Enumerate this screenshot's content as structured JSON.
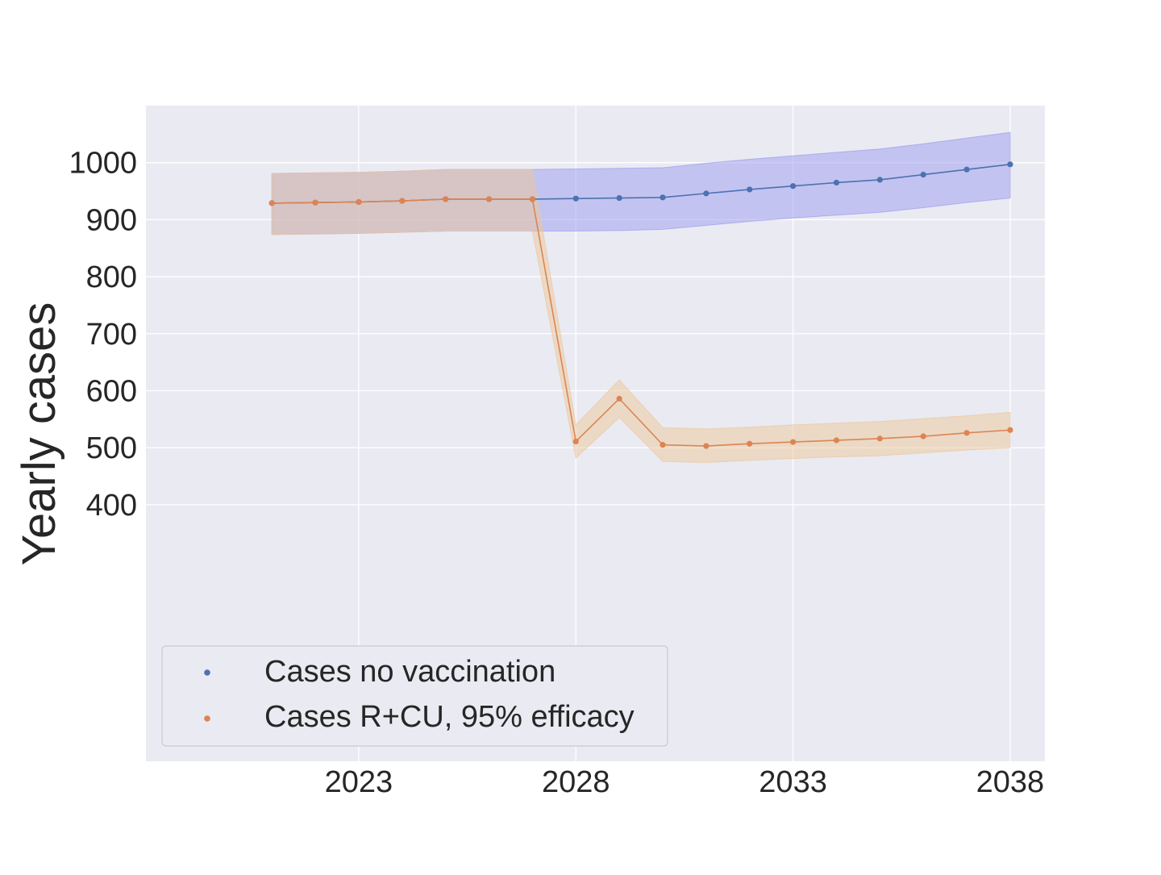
{
  "chart_data": {
    "type": "line",
    "title": "",
    "xlabel": "",
    "ylabel": "Yearly cases",
    "x": [
      2021,
      2022,
      2023,
      2024,
      2025,
      2026,
      2027,
      2028,
      2029,
      2030,
      2031,
      2032,
      2033,
      2034,
      2035,
      2036,
      2037,
      2038
    ],
    "x_ticks": [
      2023,
      2028,
      2033,
      2038
    ],
    "x_tick_labels": [
      "2023",
      "2028",
      "2033",
      "2038"
    ],
    "y_ticks": [
      400,
      500,
      600,
      700,
      800,
      900,
      1000
    ],
    "y_tick_labels": [
      "400",
      "500",
      "600",
      "700",
      "800",
      "900",
      "1000"
    ],
    "xlim": [
      2018.1,
      2038.8
    ],
    "ylim": [
      -50,
      1100
    ],
    "grid": true,
    "legend_position": "lower-left",
    "background_color": "#eaeaf2",
    "series": [
      {
        "name": "Cases no vaccination",
        "color": "#4c72b0",
        "band_color": "#9b9bf0",
        "values": [
          929,
          930,
          931,
          933,
          936,
          936,
          936,
          937,
          938,
          939,
          946,
          953,
          959,
          965,
          970,
          979,
          988,
          997
        ],
        "lower": [
          874,
          875,
          876,
          878,
          880,
          880,
          880,
          880,
          881,
          883,
          890,
          897,
          903,
          908,
          913,
          921,
          930,
          938
        ],
        "upper": [
          981,
          982,
          983,
          985,
          988,
          988,
          988,
          989,
          990,
          991,
          999,
          1006,
          1012,
          1018,
          1024,
          1033,
          1043,
          1053
        ]
      },
      {
        "name": "Cases R+CU, 95% efficacy",
        "color": "#dd8452",
        "band_color": "#ebc89a",
        "values": [
          929,
          930,
          931,
          933,
          936,
          936,
          936,
          511,
          586,
          505,
          503,
          507,
          510,
          513,
          516,
          520,
          526,
          531
        ],
        "lower": [
          874,
          875,
          876,
          878,
          880,
          880,
          880,
          482,
          553,
          476,
          474,
          478,
          481,
          484,
          486,
          491,
          496,
          500
        ],
        "upper": [
          981,
          982,
          983,
          985,
          988,
          988,
          988,
          540,
          619,
          535,
          533,
          536,
          540,
          543,
          546,
          551,
          556,
          562
        ]
      }
    ]
  }
}
